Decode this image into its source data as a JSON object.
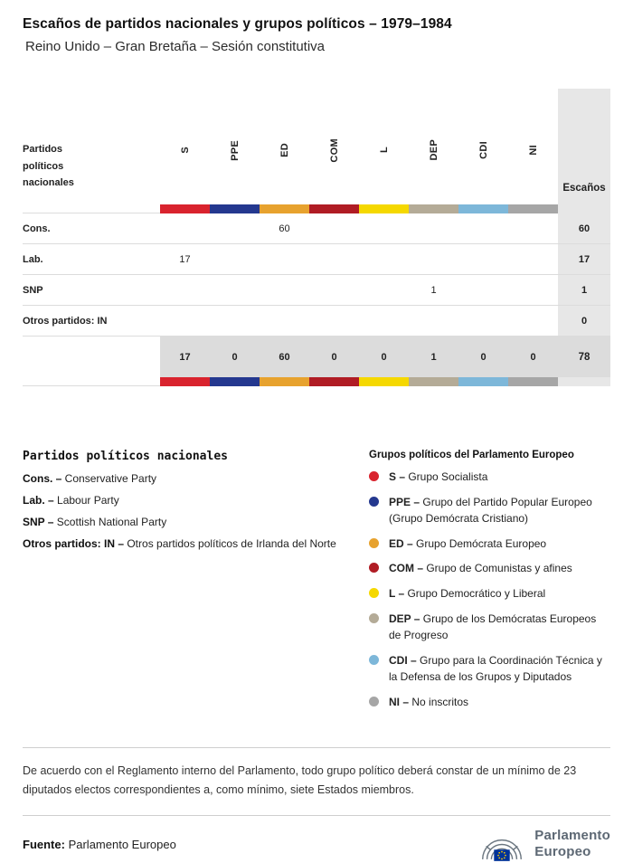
{
  "header": {
    "title": "Escaños de partidos nacionales y grupos políticos – 1979–1984",
    "subtitle": "Reino Unido – Gran Bretaña – Sesión constitutiva"
  },
  "table": {
    "row_header_label": "Partidos políticos nacionales",
    "seats_label": "Escaños",
    "groups": [
      {
        "code": "S",
        "color": "#d9232e"
      },
      {
        "code": "PPE",
        "color": "#24388f"
      },
      {
        "code": "ED",
        "color": "#e7a22e"
      },
      {
        "code": "COM",
        "color": "#b01c24"
      },
      {
        "code": "L",
        "color": "#f5d800"
      },
      {
        "code": "DEP",
        "color": "#b4ab97"
      },
      {
        "code": "CDI",
        "color": "#7db7d9"
      },
      {
        "code": "NI",
        "color": "#a6a6a6"
      }
    ],
    "rows": [
      {
        "label": "Cons.",
        "values": [
          "",
          "",
          "60",
          "",
          "",
          "",
          "",
          ""
        ],
        "total": "60"
      },
      {
        "label": "Lab.",
        "values": [
          "17",
          "",
          "",
          "",
          "",
          "",
          "",
          ""
        ],
        "total": "17"
      },
      {
        "label": "SNP",
        "values": [
          "",
          "",
          "",
          "",
          "",
          "1",
          "",
          ""
        ],
        "total": "1"
      },
      {
        "label": "Otros partidos: IN",
        "values": [
          "",
          "",
          "",
          "",
          "",
          "",
          "",
          ""
        ],
        "total": "0"
      }
    ],
    "totals": {
      "values": [
        "17",
        "0",
        "60",
        "0",
        "0",
        "1",
        "0",
        "0"
      ],
      "total": "78"
    }
  },
  "legend_parties": {
    "title": "Partidos políticos nacionales",
    "items": [
      {
        "abbr": "Cons. –",
        "name": "Conservative Party"
      },
      {
        "abbr": "Lab. –",
        "name": "Labour Party"
      },
      {
        "abbr": "SNP –",
        "name": "Scottish National Party"
      },
      {
        "abbr": "Otros partidos: IN –",
        "name": "Otros partidos políticos de Irlanda del Norte"
      }
    ]
  },
  "legend_groups": {
    "title": "Grupos políticos del Parlamento Europeo",
    "items": [
      {
        "abbr": "S –",
        "name": "Grupo Socialista",
        "color": "#d9232e"
      },
      {
        "abbr": "PPE –",
        "name": "Grupo del Partido Popular Europeo (Grupo Demócrata Cristiano)",
        "color": "#24388f"
      },
      {
        "abbr": "ED –",
        "name": "Grupo Demócrata Europeo",
        "color": "#e7a22e"
      },
      {
        "abbr": "COM –",
        "name": "Grupo de Comunistas y afines",
        "color": "#b01c24"
      },
      {
        "abbr": "L –",
        "name": "Grupo Democrático y Liberal",
        "color": "#f5d800"
      },
      {
        "abbr": "DEP –",
        "name": "Grupo de los Demócratas Europeos de Progreso",
        "color": "#b4ab97"
      },
      {
        "abbr": "CDI –",
        "name": "Grupo para la Coordinación Técnica y la Defensa de los Grupos y Diputados",
        "color": "#7db7d9"
      },
      {
        "abbr": "NI –",
        "name": "No inscritos",
        "color": "#a6a6a6"
      }
    ]
  },
  "footnote": "De acuerdo con el Reglamento interno del Parlamento, todo grupo político deberá constar de un mínimo de 23 diputados electos correspondientes a, como mínimo, siete Estados miembros.",
  "source": {
    "label": "Fuente:",
    "value": "Parlamento Europeo"
  },
  "logo": {
    "line1": "Parlamento",
    "line2": "Europeo"
  },
  "chart_data": {
    "type": "table",
    "title": "Escaños de partidos nacionales y grupos políticos – 1979–1984",
    "subtitle": "Reino Unido – Gran Bretaña – Sesión constitutiva",
    "columns": [
      "S",
      "PPE",
      "ED",
      "COM",
      "L",
      "DEP",
      "CDI",
      "NI",
      "Escaños"
    ],
    "rows": [
      {
        "party": "Cons.",
        "values": [
          null,
          null,
          60,
          null,
          null,
          null,
          null,
          null
        ],
        "total": 60
      },
      {
        "party": "Lab.",
        "values": [
          17,
          null,
          null,
          null,
          null,
          null,
          null,
          null
        ],
        "total": 17
      },
      {
        "party": "SNP",
        "values": [
          null,
          null,
          null,
          null,
          null,
          1,
          null,
          null
        ],
        "total": 1
      },
      {
        "party": "Otros partidos: IN",
        "values": [
          null,
          null,
          null,
          null,
          null,
          null,
          null,
          null
        ],
        "total": 0
      }
    ],
    "column_totals": [
      17,
      0,
      60,
      0,
      0,
      1,
      0,
      0
    ],
    "grand_total": 78
  }
}
